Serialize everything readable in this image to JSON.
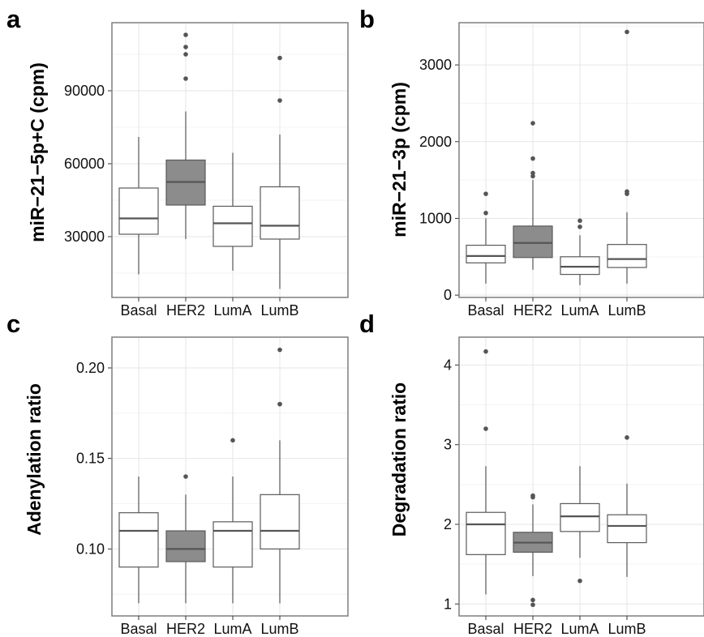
{
  "chart_data": [
    {
      "panel": "a",
      "type": "boxplot",
      "ylabel": "miR−21−5p+C (cpm)",
      "categories": [
        "Basal",
        "HER2",
        "LumA",
        "LumB"
      ],
      "highlight": "HER2",
      "ylim": [
        5000,
        118000
      ],
      "yticks": [
        30000,
        60000,
        90000
      ],
      "ytick_labels": [
        "30000",
        "60000",
        "90000"
      ],
      "boxes": [
        {
          "category": "Basal",
          "whisker_low": 14500,
          "q1": 31000,
          "median": 37500,
          "q3": 50000,
          "whisker_high": 71000,
          "outliers": []
        },
        {
          "category": "HER2",
          "whisker_low": 29000,
          "q1": 43000,
          "median": 52500,
          "q3": 61500,
          "whisker_high": 81500,
          "outliers": [
            95000,
            105000,
            108000,
            113000
          ]
        },
        {
          "category": "LumA",
          "whisker_low": 16000,
          "q1": 26000,
          "median": 35500,
          "q3": 42500,
          "whisker_high": 64500,
          "outliers": []
        },
        {
          "category": "LumB",
          "whisker_low": 8500,
          "q1": 29000,
          "median": 34500,
          "q3": 50500,
          "whisker_high": 72000,
          "outliers": [
            86000,
            103500
          ]
        }
      ],
      "grid": true
    },
    {
      "panel": "b",
      "type": "boxplot",
      "ylabel": "miR−21−3p (cpm)",
      "categories": [
        "Basal",
        "HER2",
        "LumA",
        "LumB"
      ],
      "highlight": "HER2",
      "ylim": [
        -30,
        3550
      ],
      "yticks": [
        0,
        1000,
        2000,
        3000
      ],
      "ytick_labels": [
        "0",
        "1000",
        "2000",
        "3000"
      ],
      "boxes": [
        {
          "category": "Basal",
          "whisker_low": 150,
          "q1": 420,
          "median": 510,
          "q3": 650,
          "whisker_high": 1000,
          "outliers": [
            1070,
            1320
          ]
        },
        {
          "category": "HER2",
          "whisker_low": 330,
          "q1": 490,
          "median": 680,
          "q3": 900,
          "whisker_high": 1500,
          "outliers": [
            1550,
            1590,
            1780,
            2240
          ]
        },
        {
          "category": "LumA",
          "whisker_low": 130,
          "q1": 270,
          "median": 370,
          "q3": 500,
          "whisker_high": 780,
          "outliers": [
            890,
            970
          ]
        },
        {
          "category": "LumB",
          "whisker_low": 150,
          "q1": 360,
          "median": 470,
          "q3": 660,
          "whisker_high": 1080,
          "outliers": [
            1320,
            1350,
            3430
          ]
        }
      ],
      "grid": true
    },
    {
      "panel": "c",
      "type": "boxplot",
      "ylabel": "Adenylation ratio",
      "categories": [
        "Basal",
        "HER2",
        "LumA",
        "LumB"
      ],
      "highlight": "HER2",
      "ylim": [
        0.063,
        0.217
      ],
      "yticks": [
        0.1,
        0.15,
        0.2
      ],
      "ytick_labels": [
        "0.10",
        "0.15",
        "0.20"
      ],
      "boxes": [
        {
          "category": "Basal",
          "whisker_low": 0.07,
          "q1": 0.09,
          "median": 0.11,
          "q3": 0.12,
          "whisker_high": 0.14,
          "outliers": []
        },
        {
          "category": "HER2",
          "whisker_low": 0.07,
          "q1": 0.093,
          "median": 0.1,
          "q3": 0.11,
          "whisker_high": 0.13,
          "outliers": [
            0.14
          ]
        },
        {
          "category": "LumA",
          "whisker_low": 0.07,
          "q1": 0.09,
          "median": 0.11,
          "q3": 0.115,
          "whisker_high": 0.14,
          "outliers": [
            0.16
          ]
        },
        {
          "category": "LumB",
          "whisker_low": 0.07,
          "q1": 0.1,
          "median": 0.11,
          "q3": 0.13,
          "whisker_high": 0.16,
          "outliers": [
            0.18,
            0.18,
            0.21
          ]
        }
      ],
      "grid": true
    },
    {
      "panel": "d",
      "type": "boxplot",
      "ylabel": "Degradation ratio",
      "categories": [
        "Basal",
        "HER2",
        "LumA",
        "LumB"
      ],
      "highlight": "HER2",
      "ylim": [
        0.85,
        4.35
      ],
      "yticks": [
        1,
        2,
        3,
        4
      ],
      "ytick_labels": [
        "1",
        "2",
        "3",
        "4"
      ],
      "boxes": [
        {
          "category": "Basal",
          "whisker_low": 1.12,
          "q1": 1.62,
          "median": 2.0,
          "q3": 2.15,
          "whisker_high": 2.73,
          "outliers": [
            3.2,
            4.17
          ]
        },
        {
          "category": "HER2",
          "whisker_low": 1.35,
          "q1": 1.65,
          "median": 1.77,
          "q3": 1.9,
          "whisker_high": 2.25,
          "outliers": [
            0.99,
            1.05,
            2.34,
            2.36
          ]
        },
        {
          "category": "LumA",
          "whisker_low": 1.58,
          "q1": 1.91,
          "median": 2.1,
          "q3": 2.26,
          "whisker_high": 2.73,
          "outliers": [
            1.29
          ]
        },
        {
          "category": "LumB",
          "whisker_low": 1.34,
          "q1": 1.77,
          "median": 1.98,
          "q3": 2.12,
          "whisker_high": 2.51,
          "outliers": [
            3.09
          ]
        }
      ],
      "grid": true
    }
  ],
  "colors": {
    "highlight_fill": "#8c8c8c",
    "box_fill": "#ffffff",
    "box_stroke": "#5a5a5a",
    "median": "#555555",
    "whisker": "#555555",
    "outlier": "#555555",
    "frame": "#7f7f7f",
    "grid_major": "#e6e6e6",
    "grid_minor": "#f3f3f3"
  }
}
